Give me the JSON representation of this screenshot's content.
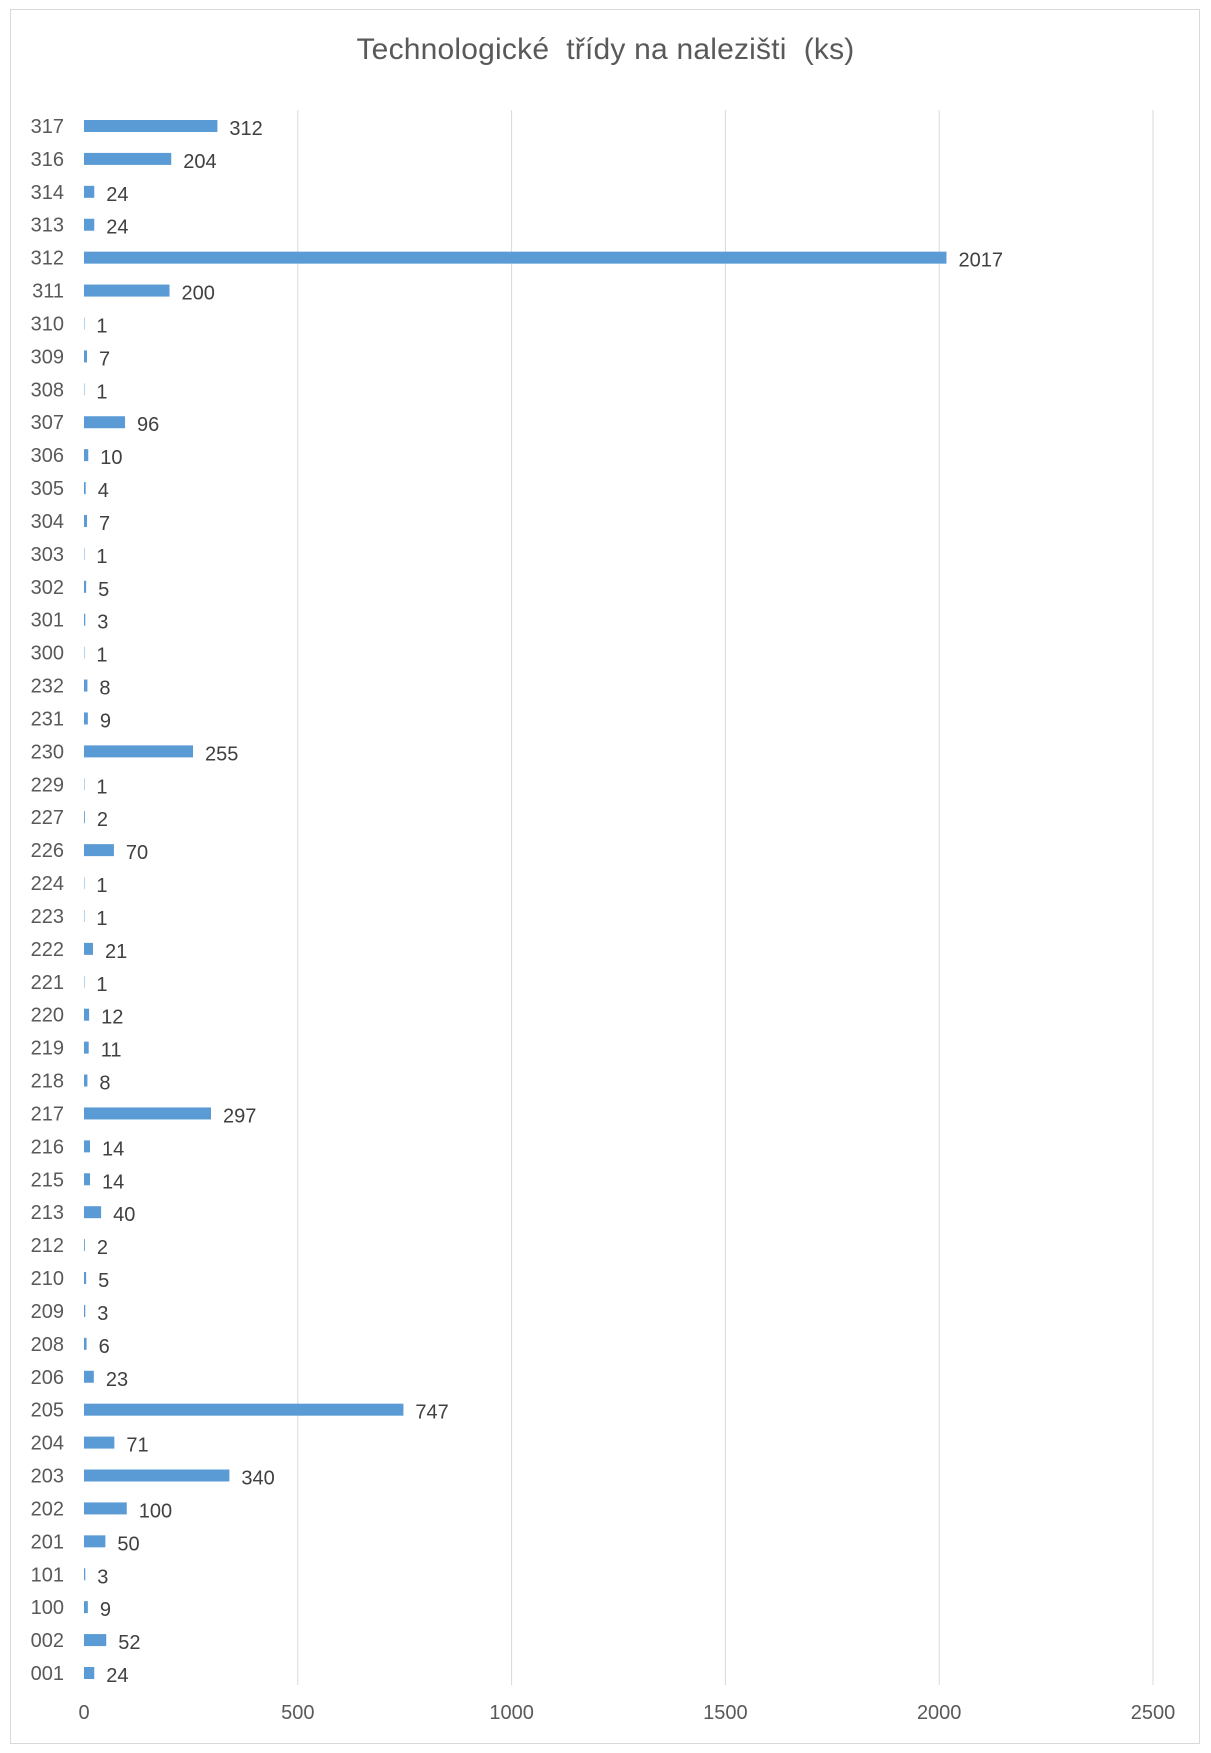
{
  "chart_data": {
    "type": "bar",
    "orientation": "horizontal",
    "title": "Technologické  třídy na nalezišti  (ks)",
    "xlabel": "",
    "ylabel": "",
    "xlim": [
      0,
      2500
    ],
    "x_ticks": [
      0,
      500,
      1000,
      1500,
      2000,
      2500
    ],
    "grid": true,
    "data_labels": true,
    "bar_color": "#5b9bd5",
    "categories": [
      "001",
      "002",
      "100",
      "101",
      "201",
      "202",
      "203",
      "204",
      "205",
      "206",
      "208",
      "209",
      "210",
      "212",
      "213",
      "215",
      "216",
      "217",
      "218",
      "219",
      "220",
      "221",
      "222",
      "223",
      "224",
      "226",
      "227",
      "229",
      "230",
      "231",
      "232",
      "300",
      "301",
      "302",
      "303",
      "304",
      "305",
      "306",
      "307",
      "308",
      "309",
      "310",
      "311",
      "312",
      "313",
      "314",
      "316",
      "317"
    ],
    "values": [
      24,
      52,
      9,
      3,
      50,
      100,
      340,
      71,
      747,
      23,
      6,
      3,
      5,
      2,
      40,
      14,
      14,
      297,
      8,
      11,
      12,
      1,
      21,
      1,
      1,
      70,
      2,
      1,
      255,
      9,
      8,
      1,
      3,
      5,
      1,
      7,
      4,
      10,
      96,
      1,
      7,
      1,
      200,
      2017,
      24,
      24,
      204,
      312
    ]
  },
  "colors": {
    "bar": "#5b9bd5",
    "grid": "#d9d9d9",
    "text": "#595959"
  }
}
